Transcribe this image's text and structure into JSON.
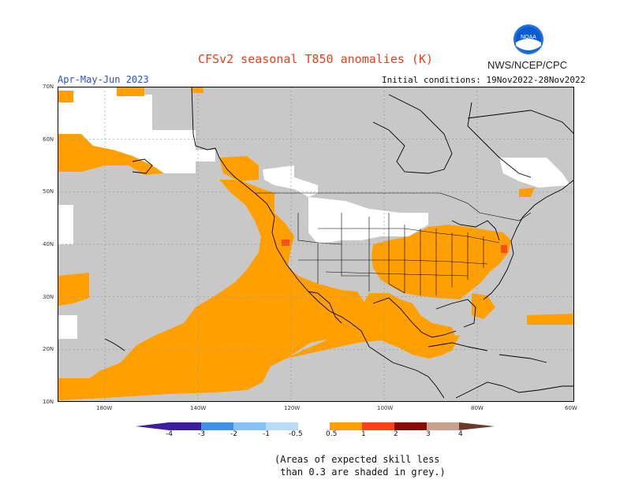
{
  "header": {
    "title": "CFSv2 seasonal T850 anomalies (K)",
    "agency": "NWS/NCEP/CPC",
    "logo_text": "NOAA",
    "season": "Apr-May-Jun 2023",
    "initial_conditions": "Initial conditions: 19Nov2022-28Nov2022"
  },
  "map": {
    "lat_labels": [
      "70N",
      "60N",
      "50N",
      "40N",
      "30N",
      "20N",
      "10N"
    ],
    "lon_labels": [
      "180W",
      "140W",
      "120W",
      "100W",
      "80W",
      "60W"
    ],
    "colors": {
      "skill_mask_grey": "#c8c8c8",
      "warm_0_5_1": "#ff9f00",
      "warm_1_2": "#ff4a1a",
      "neutral": "#ffffff",
      "land_lines": "#000000"
    }
  },
  "colorbar": {
    "ticks": [
      "-4",
      "-3",
      "-2",
      "-1",
      "-0.5",
      "0.5",
      "1",
      "2",
      "3",
      "4"
    ],
    "colors": [
      "#3b1f9e",
      "#2f4fd6",
      "#3f8fe8",
      "#86c1f5",
      "#b8dcf8",
      "#ffffff",
      "#ff9f00",
      "#ff3d1a",
      "#d01a10",
      "#8b0a0a",
      "#c8a090",
      "#6b3a2a"
    ]
  },
  "footer": {
    "note_line1": "(Areas of expected skill less",
    "note_line2": " than 0.3 are shaded in grey.)"
  }
}
